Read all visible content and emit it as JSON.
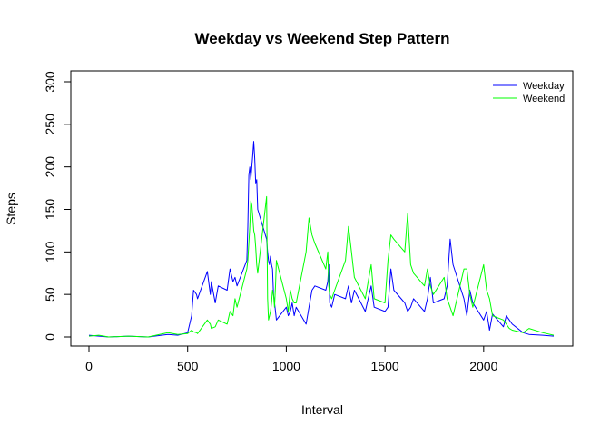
{
  "chart_data": {
    "type": "line",
    "title": "Weekday vs Weekend Step Pattern",
    "xlabel": "Interval",
    "ylabel": "Steps",
    "xlim": [
      0,
      2355
    ],
    "ylim": [
      0,
      300
    ],
    "xticks": [
      0,
      500,
      1000,
      1500,
      2000
    ],
    "yticks": [
      0,
      50,
      100,
      150,
      200,
      250,
      300
    ],
    "grid": false,
    "legend_position": "top-right",
    "series": [
      {
        "name": "Weekday",
        "color": "#0000ff",
        "x": [
          0,
          50,
          100,
          200,
          300,
          400,
          450,
          500,
          520,
          530,
          545,
          550,
          600,
          615,
          620,
          640,
          655,
          700,
          715,
          730,
          740,
          750,
          800,
          805,
          810,
          815,
          820,
          825,
          830,
          835,
          840,
          845,
          850,
          855,
          900,
          905,
          910,
          915,
          920,
          925,
          930,
          935,
          940,
          945,
          950,
          1000,
          1010,
          1020,
          1030,
          1040,
          1050,
          1100,
          1115,
          1130,
          1145,
          1200,
          1210,
          1215,
          1220,
          1230,
          1245,
          1300,
          1315,
          1330,
          1345,
          1400,
          1415,
          1430,
          1445,
          1500,
          1515,
          1530,
          1545,
          1600,
          1615,
          1630,
          1645,
          1700,
          1715,
          1730,
          1745,
          1800,
          1815,
          1830,
          1845,
          1900,
          1915,
          1930,
          1945,
          2000,
          2015,
          2030,
          2045,
          2100,
          2115,
          2130,
          2145,
          2200,
          2230,
          2300,
          2355
        ],
        "y": [
          2,
          1,
          0,
          1,
          0,
          3,
          2,
          5,
          25,
          55,
          50,
          45,
          77,
          50,
          65,
          40,
          60,
          55,
          80,
          65,
          70,
          60,
          90,
          130,
          190,
          200,
          185,
          200,
          215,
          230,
          210,
          180,
          185,
          150,
          115,
          100,
          90,
          85,
          95,
          85,
          80,
          50,
          40,
          30,
          20,
          35,
          25,
          30,
          40,
          25,
          35,
          15,
          35,
          55,
          60,
          55,
          65,
          85,
          40,
          35,
          50,
          45,
          60,
          40,
          55,
          30,
          45,
          60,
          35,
          30,
          35,
          80,
          55,
          40,
          30,
          35,
          45,
          30,
          45,
          70,
          40,
          45,
          60,
          115,
          85,
          45,
          25,
          55,
          40,
          20,
          30,
          8,
          27,
          12,
          25,
          20,
          15,
          5,
          3,
          2,
          1
        ]
      },
      {
        "name": "Weekend",
        "color": "#00ff00",
        "x": [
          0,
          50,
          100,
          200,
          300,
          400,
          450,
          500,
          520,
          530,
          545,
          550,
          600,
          615,
          620,
          640,
          655,
          700,
          715,
          730,
          740,
          750,
          800,
          805,
          810,
          815,
          820,
          825,
          830,
          835,
          840,
          845,
          850,
          855,
          900,
          905,
          910,
          915,
          920,
          925,
          930,
          935,
          940,
          945,
          950,
          1000,
          1010,
          1020,
          1030,
          1040,
          1050,
          1100,
          1115,
          1130,
          1145,
          1200,
          1210,
          1215,
          1220,
          1230,
          1245,
          1300,
          1315,
          1330,
          1345,
          1400,
          1415,
          1430,
          1445,
          1500,
          1515,
          1530,
          1545,
          1600,
          1615,
          1630,
          1645,
          1700,
          1715,
          1730,
          1745,
          1800,
          1815,
          1830,
          1845,
          1900,
          1915,
          1930,
          1945,
          2000,
          2015,
          2030,
          2045,
          2100,
          2115,
          2130,
          2145,
          2200,
          2230,
          2300,
          2355
        ],
        "y": [
          1,
          2,
          0,
          1,
          0,
          5,
          3,
          4,
          8,
          6,
          5,
          4,
          20,
          15,
          10,
          12,
          20,
          15,
          30,
          25,
          45,
          35,
          80,
          90,
          110,
          130,
          160,
          155,
          140,
          125,
          120,
          105,
          85,
          75,
          165,
          45,
          20,
          25,
          30,
          40,
          55,
          50,
          35,
          60,
          90,
          45,
          30,
          55,
          45,
          40,
          40,
          100,
          140,
          120,
          110,
          80,
          100,
          60,
          50,
          45,
          55,
          90,
          130,
          100,
          70,
          45,
          65,
          85,
          45,
          40,
          90,
          120,
          115,
          100,
          145,
          85,
          75,
          60,
          80,
          60,
          50,
          70,
          45,
          35,
          25,
          80,
          80,
          50,
          35,
          85,
          55,
          45,
          25,
          20,
          15,
          10,
          8,
          5,
          10,
          5,
          2
        ]
      }
    ]
  }
}
